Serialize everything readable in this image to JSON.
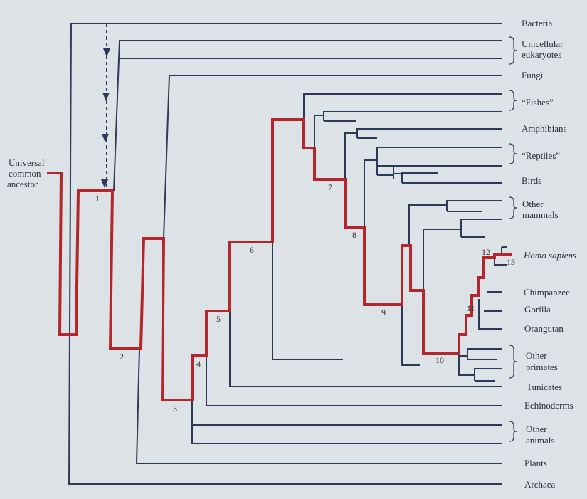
{
  "ancestor_label": [
    "Universal",
    "common",
    "ancestor"
  ],
  "taxa": {
    "bacteria": "Bacteria",
    "unicellular_eukaryotes": [
      "Unicellular",
      "eukaryotes"
    ],
    "fungi": "Fungi",
    "fishes": "“Fishes”",
    "amphibians": "Amphibians",
    "reptiles": "“Reptiles”",
    "birds": "Birds",
    "other_mammals": [
      "Other",
      "mammals"
    ],
    "homo_sapiens": "Homo sapiens",
    "chimpanzee": "Chimpanzee",
    "gorilla": "Gorilla",
    "orangutan": "Orangutan",
    "other_primates": [
      "Other",
      "primates"
    ],
    "tunicates": "Tunicates",
    "echinoderms": "Echinoderms",
    "other_animals": [
      "Other",
      "animals"
    ],
    "plants": "Plants",
    "archaea": "Archaea"
  },
  "nodes": [
    "1",
    "2",
    "3",
    "4",
    "5",
    "6",
    "7",
    "8",
    "9",
    "10",
    "11",
    "12",
    "13"
  ],
  "colors": {
    "lineage": "#b3262b",
    "branches": "#2a3a58",
    "background": "#dde2e6"
  }
}
